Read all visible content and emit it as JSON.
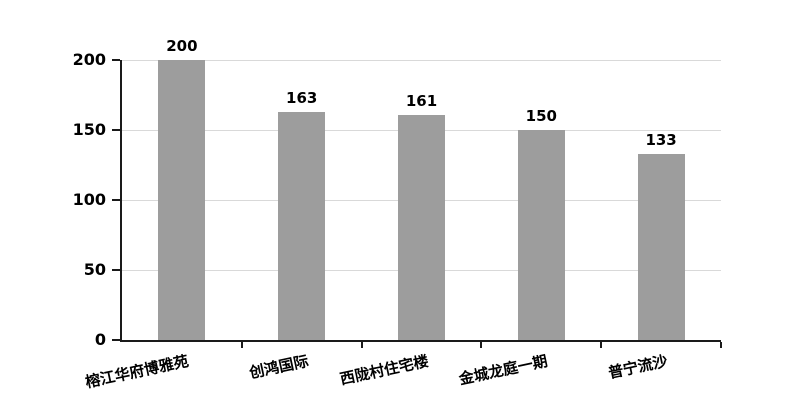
{
  "chart_data": {
    "type": "bar",
    "title": "",
    "categories": [
      "榕江华府博雅苑",
      "创鸿国际",
      "西陇村住宅楼",
      "金城龙庭一期",
      "普宁流沙"
    ],
    "values": [
      200,
      163,
      161,
      150,
      133
    ],
    "data_labels": [
      "200",
      "163",
      "161",
      "150",
      "133"
    ],
    "ytick_labels": [
      "0",
      "50",
      "100",
      "150",
      "200"
    ],
    "yticks": [
      0,
      50,
      100,
      150,
      200
    ],
    "ylim": [
      0,
      200
    ],
    "xlabel": "",
    "ylabel": "",
    "grid": "horizontal",
    "legend": "none",
    "colors": {
      "bar": "#9d9d9d",
      "gridline": "#d9d9d9",
      "axis": "#1a1a1a",
      "text": "#000000",
      "background": "#ffffff"
    }
  }
}
